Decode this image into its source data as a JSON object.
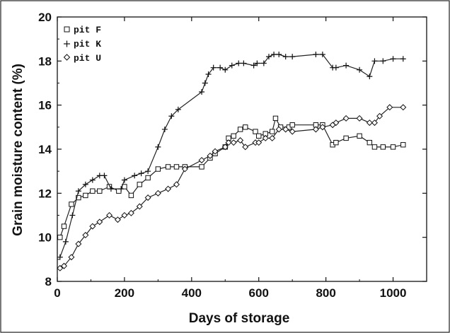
{
  "chart_data": {
    "type": "line",
    "title": "",
    "xlabel": "Days of storage",
    "ylabel": "Grain moisture content (%)",
    "xlim": [
      0,
      1100
    ],
    "ylim": [
      8,
      20
    ],
    "xticks": [
      0,
      200,
      400,
      600,
      800,
      1000
    ],
    "yticks": [
      8,
      10,
      12,
      14,
      16,
      18,
      20
    ],
    "xtick_labels": [
      "0",
      "200",
      "400",
      "600",
      "800",
      "1000"
    ],
    "ytick_labels": [
      "8",
      "10",
      "12",
      "14",
      "16",
      "18",
      "20"
    ],
    "grid": false,
    "legend_position": "top-left",
    "series": [
      {
        "name": "pit F",
        "marker": "square",
        "x": [
          8,
          20,
          42,
          63,
          84,
          105,
          126,
          155,
          183,
          200,
          220,
          245,
          270,
          300,
          330,
          355,
          380,
          430,
          455,
          470,
          500,
          510,
          525,
          545,
          560,
          590,
          600,
          620,
          640,
          650,
          665,
          690,
          700,
          770,
          790,
          820,
          830,
          860,
          900,
          930,
          945,
          970,
          1000,
          1030
        ],
        "y": [
          10.0,
          10.5,
          11.5,
          11.8,
          11.9,
          12.1,
          12.1,
          12.3,
          12.1,
          12.3,
          11.9,
          12.4,
          12.7,
          13.1,
          13.2,
          13.2,
          13.2,
          13.2,
          13.6,
          13.8,
          14.1,
          14.5,
          14.6,
          14.9,
          15.0,
          14.8,
          14.6,
          14.7,
          14.8,
          15.4,
          15.0,
          15.0,
          15.1,
          15.1,
          15.1,
          14.2,
          14.3,
          14.5,
          14.6,
          14.3,
          14.1,
          14.1,
          14.1,
          14.2
        ]
      },
      {
        "name": "pit K",
        "marker": "plus",
        "x": [
          8,
          25,
          45,
          63,
          84,
          105,
          126,
          140,
          160,
          190,
          200,
          230,
          250,
          270,
          300,
          320,
          340,
          360,
          430,
          440,
          450,
          465,
          485,
          500,
          520,
          540,
          555,
          585,
          595,
          615,
          630,
          645,
          660,
          680,
          700,
          770,
          790,
          820,
          830,
          860,
          900,
          930,
          945,
          970,
          1000,
          1030
        ],
        "y": [
          9.1,
          9.8,
          11.0,
          12.1,
          12.4,
          12.6,
          12.8,
          12.8,
          12.2,
          12.2,
          12.6,
          12.8,
          12.9,
          13.0,
          14.1,
          14.9,
          15.5,
          15.8,
          16.6,
          17.0,
          17.4,
          17.7,
          17.7,
          17.6,
          17.8,
          17.9,
          17.9,
          17.8,
          17.9,
          17.9,
          18.2,
          18.3,
          18.3,
          18.2,
          18.2,
          18.3,
          18.3,
          17.7,
          17.7,
          17.8,
          17.6,
          17.3,
          18.0,
          18.0,
          18.1,
          18.1
        ]
      },
      {
        "name": "pit U",
        "marker": "diamond",
        "x": [
          8,
          20,
          42,
          63,
          84,
          105,
          126,
          155,
          180,
          200,
          220,
          245,
          270,
          300,
          330,
          355,
          380,
          430,
          455,
          470,
          500,
          510,
          525,
          545,
          560,
          590,
          600,
          620,
          640,
          660,
          680,
          700,
          770,
          790,
          820,
          830,
          860,
          900,
          930,
          945,
          960,
          990,
          1030
        ],
        "y": [
          8.6,
          8.7,
          9.1,
          9.7,
          10.1,
          10.5,
          10.7,
          11.0,
          10.8,
          11.0,
          11.1,
          11.4,
          11.8,
          12.0,
          12.2,
          12.4,
          13.1,
          13.5,
          13.7,
          13.9,
          14.1,
          14.3,
          14.3,
          14.4,
          14.1,
          14.3,
          14.3,
          14.5,
          14.5,
          14.9,
          14.9,
          14.8,
          14.9,
          15.0,
          15.1,
          15.2,
          15.4,
          15.4,
          15.2,
          15.2,
          15.5,
          15.9,
          15.9
        ]
      }
    ]
  }
}
